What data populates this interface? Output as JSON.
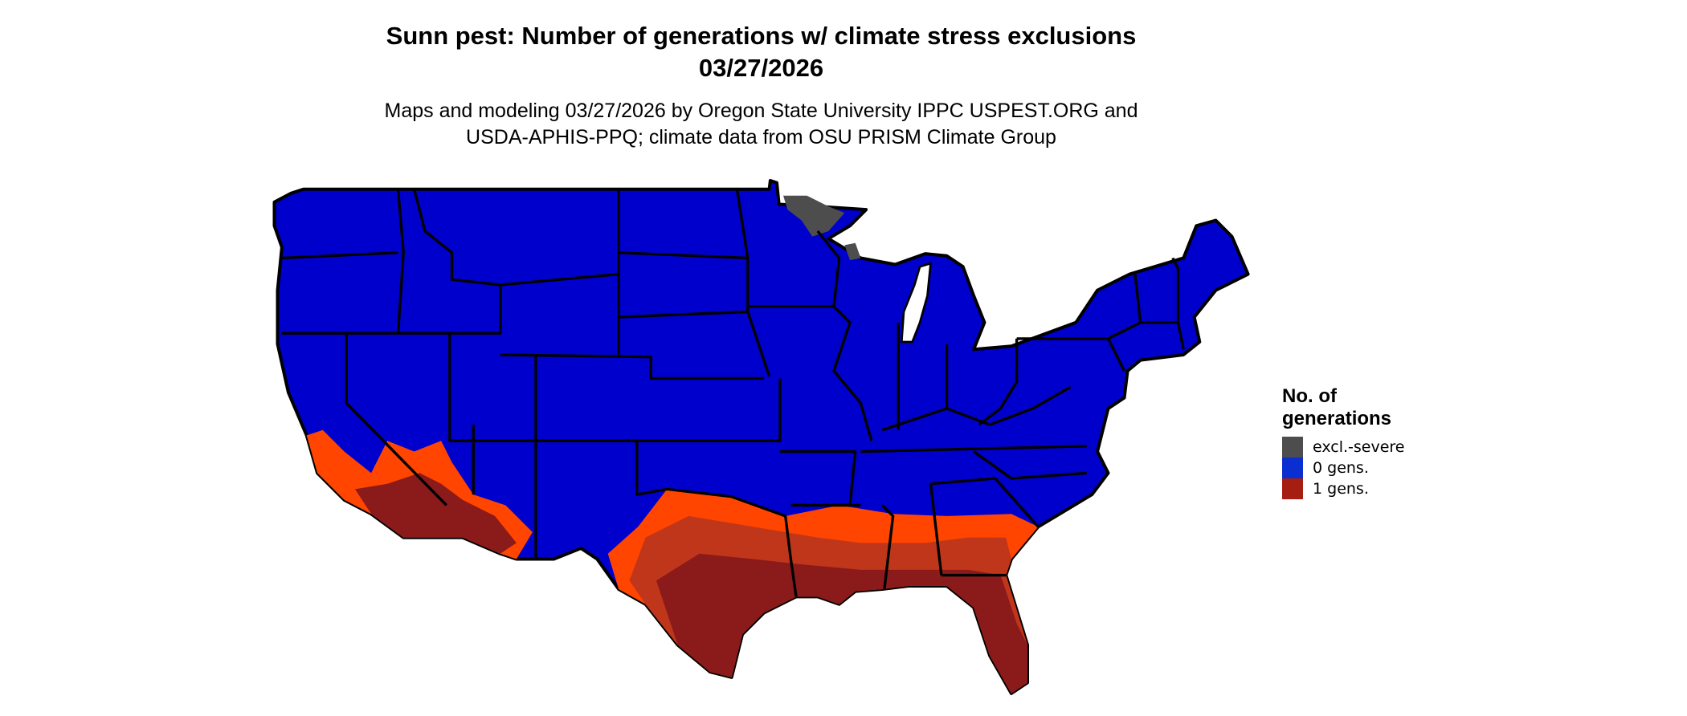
{
  "title": {
    "line1": "Sunn pest: Number of generations w/ climate stress exclusions",
    "line2": "03/27/2026"
  },
  "subtitle": {
    "line1": "Maps and modeling 03/27/2026 by Oregon State University IPPC USPEST.ORG and",
    "line2": "USDA-APHIS-PPQ; climate data from OSU PRISM Climate Group"
  },
  "legend": {
    "title_line1": "No. of",
    "title_line2": "generations",
    "items": [
      {
        "label": "excl.-severe",
        "color": "#4d4d4d"
      },
      {
        "label": "0 gens.",
        "color": "#0a2ecf"
      },
      {
        "label": "1 gens.",
        "color": "#a61e12"
      }
    ]
  },
  "map_colors": {
    "zero_gens_fill": "#0000cc",
    "one_gen_low": "#ff4500",
    "one_gen_mid": "#c0361a",
    "one_gen_high": "#8b1a1a",
    "excluded": "#4d4d4d",
    "borders": "#000000"
  }
}
